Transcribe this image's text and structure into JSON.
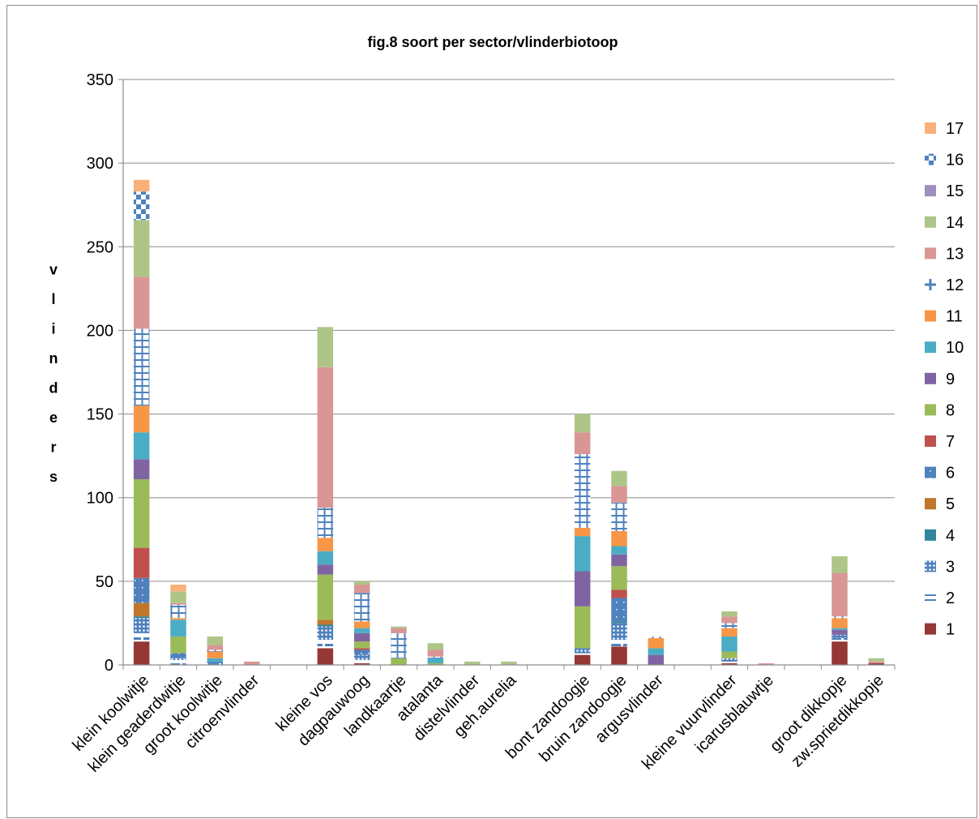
{
  "chart_data": {
    "type": "bar",
    "stacked": true,
    "title": "fig.8  soort per sector/vlinderbiotoop",
    "xlabel": "",
    "ylabel": "vlinders",
    "ylim": [
      0,
      350
    ],
    "yticks": [
      0,
      50,
      100,
      150,
      200,
      250,
      300,
      350
    ],
    "grid": true,
    "legend_position": "right",
    "categories": [
      "klein koolwitje",
      "klein geaderdwitje",
      "groot koolwitje",
      "citroenvlinder",
      "",
      "kleine vos",
      "dagpauwoog",
      "landkaartje",
      "atalanta",
      "distelvlinder",
      "geh.aurelia",
      "",
      "bont zandoogje",
      "bruin zandoogje",
      "argusvlinder",
      "",
      "kleine vuurvlinder",
      "icarusblauwtje",
      "",
      "groot dikkopje",
      "zw.sprietdikkopje"
    ],
    "series": [
      {
        "name": "1",
        "color": "#953735",
        "pattern": "solid",
        "values": [
          14,
          0,
          0,
          0,
          0,
          10,
          1,
          0,
          0,
          0,
          0,
          0,
          6,
          11,
          0,
          0,
          1,
          0,
          0,
          14,
          1
        ]
      },
      {
        "name": "2",
        "color": "#4f81bd",
        "pattern": "dash",
        "values": [
          5,
          3,
          1,
          0,
          0,
          5,
          2,
          0,
          0,
          0,
          0,
          0,
          1,
          4,
          0,
          0,
          1,
          0,
          0,
          2,
          0
        ]
      },
      {
        "name": "3",
        "color": "#4f81bd",
        "pattern": "dots",
        "values": [
          9,
          1,
          0,
          0,
          0,
          8,
          3,
          0,
          0,
          0,
          0,
          0,
          3,
          10,
          0,
          0,
          2,
          0,
          0,
          2,
          0
        ]
      },
      {
        "name": "4",
        "color": "#31859c",
        "pattern": "solid",
        "values": [
          1,
          0,
          0,
          0,
          0,
          1,
          0,
          0,
          0,
          0,
          0,
          0,
          0,
          1,
          0,
          0,
          0,
          0,
          0,
          0,
          0
        ]
      },
      {
        "name": "5",
        "color": "#c0772c",
        "pattern": "solid",
        "values": [
          8,
          0,
          0,
          0,
          0,
          3,
          0,
          0,
          0,
          0,
          0,
          0,
          0,
          0,
          0,
          0,
          0,
          0,
          0,
          0,
          0
        ]
      },
      {
        "name": "6",
        "color": "#4f81bd",
        "pattern": "sdots",
        "values": [
          15,
          3,
          1,
          0,
          0,
          0,
          3,
          0,
          0,
          0,
          0,
          0,
          0,
          14,
          0,
          0,
          0,
          0,
          0,
          0,
          0
        ]
      },
      {
        "name": "7",
        "color": "#c0504d",
        "pattern": "solid",
        "values": [
          18,
          0,
          0,
          0,
          0,
          0,
          1,
          0,
          0,
          0,
          0,
          0,
          0,
          5,
          0,
          0,
          0,
          0,
          0,
          0,
          0
        ]
      },
      {
        "name": "8",
        "color": "#9bbb59",
        "pattern": "solid",
        "values": [
          41,
          10,
          0,
          0,
          0,
          27,
          4,
          4,
          1,
          0,
          0,
          0,
          25,
          14,
          0,
          0,
          4,
          0,
          0,
          0,
          0
        ]
      },
      {
        "name": "9",
        "color": "#8064a2",
        "pattern": "solid",
        "values": [
          12,
          0,
          0,
          0,
          0,
          6,
          5,
          0,
          0,
          0,
          0,
          0,
          21,
          7,
          6,
          0,
          0,
          0,
          0,
          3,
          0
        ]
      },
      {
        "name": "10",
        "color": "#4bacc6",
        "pattern": "solid",
        "values": [
          16,
          10,
          2,
          0,
          0,
          8,
          3,
          0,
          3,
          0,
          0,
          0,
          21,
          5,
          4,
          0,
          9,
          0,
          0,
          1,
          0
        ]
      },
      {
        "name": "11",
        "color": "#f79646",
        "pattern": "solid",
        "values": [
          16,
          1,
          4,
          0,
          0,
          8,
          4,
          0,
          0,
          0,
          0,
          0,
          5,
          9,
          6,
          0,
          5,
          0,
          0,
          6,
          0
        ]
      },
      {
        "name": "12",
        "color": "#4f81bd",
        "pattern": "cross",
        "values": [
          46,
          8,
          1,
          0,
          0,
          18,
          17,
          15,
          1,
          0,
          0,
          0,
          44,
          17,
          1,
          0,
          3,
          0,
          0,
          1,
          0
        ]
      },
      {
        "name": "13",
        "color": "#d99694",
        "pattern": "solid",
        "values": [
          31,
          1,
          3,
          2,
          0,
          84,
          5,
          3,
          4,
          0,
          0,
          0,
          13,
          10,
          0,
          0,
          4,
          1,
          0,
          26,
          1
        ]
      },
      {
        "name": "14",
        "color": "#adc688",
        "pattern": "solid",
        "values": [
          34,
          7,
          5,
          0,
          0,
          24,
          2,
          1,
          4,
          2,
          2,
          0,
          11,
          9,
          0,
          0,
          3,
          0,
          0,
          10,
          2
        ]
      },
      {
        "name": "15",
        "color": "#9f8fbf",
        "pattern": "solid",
        "values": [
          0,
          0,
          0,
          0,
          0,
          0,
          0,
          0,
          0,
          0,
          0,
          0,
          0,
          0,
          0,
          0,
          0,
          0,
          0,
          0,
          0
        ]
      },
      {
        "name": "16",
        "color": "#4f81bd",
        "pattern": "checker",
        "values": [
          17,
          0,
          0,
          0,
          0,
          0,
          0,
          0,
          0,
          0,
          0,
          0,
          0,
          0,
          0,
          0,
          0,
          0,
          0,
          0,
          0
        ]
      },
      {
        "name": "17",
        "color": "#fab07a",
        "pattern": "solid",
        "values": [
          7,
          4,
          0,
          0,
          0,
          0,
          0,
          0,
          0,
          0,
          0,
          0,
          0,
          0,
          0,
          0,
          0,
          0,
          0,
          0,
          0
        ]
      }
    ]
  }
}
